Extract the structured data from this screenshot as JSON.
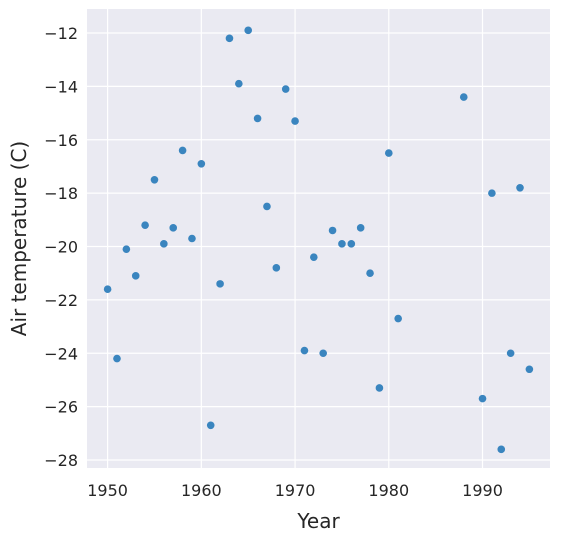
{
  "chart_data": {
    "type": "scatter",
    "title": "",
    "xlabel": "Year",
    "ylabel": "Air temperature (C)",
    "xlim": [
      1947.8,
      1997.2
    ],
    "ylim": [
      -28.3,
      -11.1
    ],
    "xticks": [
      1950,
      1960,
      1970,
      1980,
      1990
    ],
    "yticks": [
      -28,
      -26,
      -24,
      -22,
      -20,
      -18,
      -16,
      -14,
      -12
    ],
    "xtick_labels": [
      "1950",
      "1960",
      "1970",
      "1980",
      "1990"
    ],
    "ytick_labels": [
      "−28",
      "−26",
      "−24",
      "−22",
      "−20",
      "−18",
      "−16",
      "−14",
      "−12"
    ],
    "grid": true,
    "background": "#eaeaf2",
    "point_color": "#3a85bf",
    "points": [
      {
        "x": 1950,
        "y": -21.6
      },
      {
        "x": 1951,
        "y": -24.2
      },
      {
        "x": 1952,
        "y": -20.1
      },
      {
        "x": 1953,
        "y": -21.1
      },
      {
        "x": 1954,
        "y": -19.2
      },
      {
        "x": 1955,
        "y": -17.5
      },
      {
        "x": 1956,
        "y": -19.9
      },
      {
        "x": 1957,
        "y": -19.3
      },
      {
        "x": 1958,
        "y": -16.4
      },
      {
        "x": 1959,
        "y": -19.7
      },
      {
        "x": 1960,
        "y": -16.9
      },
      {
        "x": 1961,
        "y": -26.7
      },
      {
        "x": 1962,
        "y": -21.4
      },
      {
        "x": 1963,
        "y": -12.2
      },
      {
        "x": 1964,
        "y": -13.9
      },
      {
        "x": 1965,
        "y": -11.9
      },
      {
        "x": 1966,
        "y": -15.2
      },
      {
        "x": 1967,
        "y": -18.5
      },
      {
        "x": 1968,
        "y": -20.8
      },
      {
        "x": 1969,
        "y": -14.1
      },
      {
        "x": 1970,
        "y": -15.3
      },
      {
        "x": 1971,
        "y": -23.9
      },
      {
        "x": 1972,
        "y": -20.4
      },
      {
        "x": 1973,
        "y": -24.0
      },
      {
        "x": 1974,
        "y": -19.4
      },
      {
        "x": 1975,
        "y": -19.9
      },
      {
        "x": 1976,
        "y": -19.9
      },
      {
        "x": 1977,
        "y": -19.3
      },
      {
        "x": 1978,
        "y": -21.0
      },
      {
        "x": 1979,
        "y": -25.3
      },
      {
        "x": 1980,
        "y": -16.5
      },
      {
        "x": 1981,
        "y": -22.7
      },
      {
        "x": 1988,
        "y": -14.4
      },
      {
        "x": 1990,
        "y": -25.7
      },
      {
        "x": 1991,
        "y": -18.0
      },
      {
        "x": 1992,
        "y": -27.6
      },
      {
        "x": 1993,
        "y": -24.0
      },
      {
        "x": 1994,
        "y": -17.8
      },
      {
        "x": 1995,
        "y": -24.6
      }
    ]
  }
}
